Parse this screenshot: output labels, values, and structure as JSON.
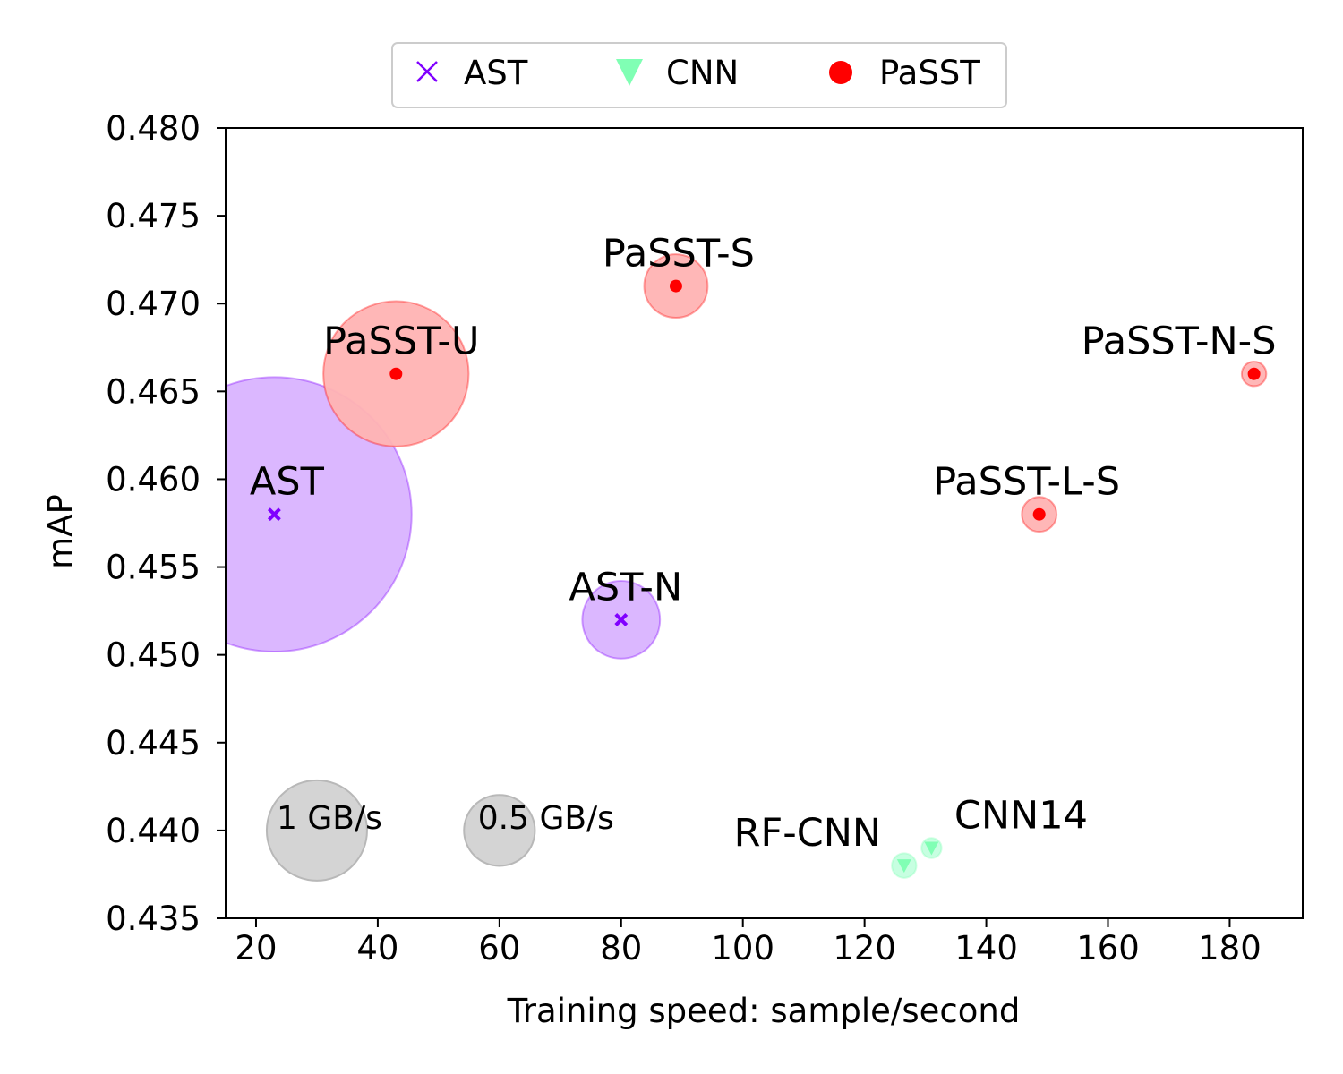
{
  "chart_data": {
    "type": "scatter",
    "xlabel": "Training speed: sample/second",
    "ylabel": "mAP",
    "xlim": [
      15,
      192
    ],
    "ylim": [
      0.435,
      0.48
    ],
    "xticks": [
      20,
      40,
      60,
      80,
      100,
      120,
      140,
      160,
      180
    ],
    "yticks": [
      0.435,
      0.44,
      0.445,
      0.45,
      0.455,
      0.46,
      0.465,
      0.47,
      0.475,
      0.48
    ],
    "grid": false,
    "legend_position": "top-center",
    "legend": [
      {
        "name": "AST",
        "marker": "x",
        "color": "#8000ff"
      },
      {
        "name": "CNN",
        "marker": "triangle-down",
        "color": "#80ffb4"
      },
      {
        "name": "PaSST",
        "marker": "circle",
        "color": "#ff0000"
      }
    ],
    "series": [
      {
        "name": "AST",
        "color": "#8000ff",
        "bubble_fill": "#d9b3ff",
        "points": [
          {
            "label": "AST",
            "x": 23,
            "y": 0.458,
            "memory_gbps": 7.5
          },
          {
            "label": "AST-N",
            "x": 80,
            "y": 0.452,
            "memory_gbps": 0.6
          }
        ]
      },
      {
        "name": "CNN",
        "color": "#80ffb4",
        "bubble_fill": "#c4ffdf",
        "points": [
          {
            "label": "RF-CNN",
            "x": 126.5,
            "y": 0.438,
            "memory_gbps": 0.06
          },
          {
            "label": "CNN14",
            "x": 131,
            "y": 0.439,
            "memory_gbps": 0.04
          }
        ]
      },
      {
        "name": "PaSST",
        "color": "#ff0000",
        "bubble_fill": "#ffb3b3",
        "points": [
          {
            "label": "PaSST-U",
            "x": 43,
            "y": 0.466,
            "memory_gbps": 2.1
          },
          {
            "label": "PaSST-S",
            "x": 89,
            "y": 0.471,
            "memory_gbps": 0.4
          },
          {
            "label": "PaSST-N-S",
            "x": 184,
            "y": 0.466,
            "memory_gbps": 0.06
          },
          {
            "label": "PaSST-L-S",
            "x": 148.7,
            "y": 0.458,
            "memory_gbps": 0.12
          }
        ]
      }
    ],
    "size_reference": [
      {
        "label": "1 GB/s",
        "x": 30,
        "y": 0.44,
        "memory_gbps": 1.0
      },
      {
        "label": "0.5 GB/s",
        "x": 60,
        "y": 0.44,
        "memory_gbps": 0.5
      }
    ]
  }
}
